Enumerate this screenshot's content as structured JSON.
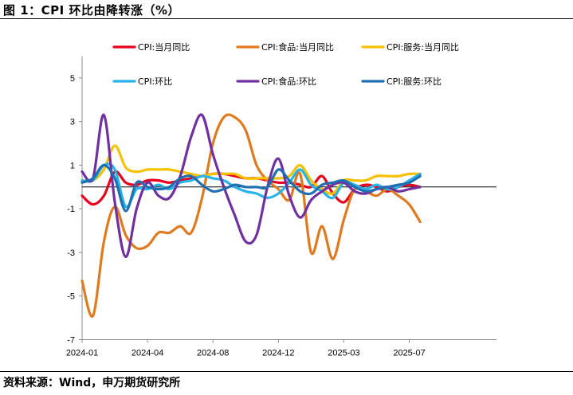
{
  "header": {
    "title": "图 1：CPI 环比由降转涨（%）"
  },
  "footer": {
    "source": "资料来源：Wind，申万期货研究所"
  },
  "chart_data": {
    "type": "line",
    "title": "CPI 环比由降转涨（%）",
    "xlabel": "",
    "ylabel": "",
    "ylim": [
      -7,
      6
    ],
    "yticks": [
      5,
      3,
      1,
      -1,
      -3,
      -5,
      -7
    ],
    "xlim": [
      0,
      19
    ],
    "x_ticks": [
      {
        "label": "2024-01",
        "x": 0
      },
      {
        "label": "2024-04",
        "x": 3
      },
      {
        "label": "2024-08",
        "x": 6
      },
      {
        "label": "2024-12",
        "x": 9
      },
      {
        "label": "2025-03",
        "x": 12
      },
      {
        "label": "2025-07",
        "x": 15
      }
    ],
    "zero_line": true,
    "grid": false,
    "legend_position": "top",
    "series": [
      {
        "name": "CPI:当月同比",
        "color": "#e8001c",
        "x": [
          0,
          0.5,
          1,
          1.5,
          2,
          2.5,
          3,
          3.5,
          4,
          4.5,
          5,
          5.5,
          6,
          6.5,
          7,
          7.5,
          8,
          8.5,
          9,
          9.5,
          10,
          10.5,
          11,
          11.5,
          12,
          12.5,
          13,
          13.5,
          14,
          14.5,
          15,
          15.5
        ],
        "values": [
          -0.4,
          -0.8,
          -0.4,
          0.7,
          0.2,
          0.1,
          0.3,
          0.3,
          0.2,
          0.3,
          0.4,
          0.5,
          0.6,
          0.6,
          0.5,
          0.4,
          0.4,
          0.3,
          0.2,
          0.2,
          0.1,
          0.0,
          0.5,
          -0.3,
          -0.7,
          -0.1,
          0.1,
          0.0,
          -0.2,
          0.0,
          0.1,
          0.0
        ]
      },
      {
        "name": "CPI:食品:当月同比",
        "color": "#e07a1e",
        "x": [
          0,
          0.5,
          1,
          1.5,
          2,
          2.5,
          3,
          3.5,
          4,
          4.5,
          5,
          5.5,
          6,
          6.5,
          7,
          7.5,
          8,
          8.5,
          9,
          9.5,
          10,
          10.5,
          11,
          11.5,
          12,
          12.5,
          13,
          13.5,
          14,
          14.5,
          15,
          15.5
        ],
        "values": [
          -4.3,
          -5.9,
          -2.5,
          -0.9,
          -2.2,
          -2.8,
          -2.7,
          -2.1,
          -2.1,
          -1.8,
          -2.1,
          -0.5,
          2.0,
          3.2,
          3.2,
          2.6,
          1.0,
          0.3,
          -0.1,
          -0.6,
          0.6,
          -3.0,
          -1.8,
          -3.3,
          -1.5,
          -0.1,
          -0.2,
          -0.4,
          -0.1,
          -0.4,
          -0.8,
          -1.6
        ]
      },
      {
        "name": "CPI:服务:当月同比",
        "color": "#f5c100",
        "x": [
          0,
          0.5,
          1,
          1.5,
          2,
          2.5,
          3,
          3.5,
          4,
          4.5,
          5,
          5.5,
          6,
          6.5,
          7,
          7.5,
          8,
          8.5,
          9,
          9.5,
          10,
          10.5,
          11,
          11.5,
          12,
          12.5,
          13,
          13.5,
          14,
          14.5,
          15,
          15.5
        ],
        "values": [
          0.3,
          0.3,
          0.8,
          1.9,
          0.9,
          0.7,
          0.8,
          0.8,
          0.8,
          0.7,
          0.6,
          0.5,
          0.6,
          0.6,
          0.6,
          0.4,
          0.4,
          0.4,
          0.4,
          0.5,
          1.0,
          0.3,
          -0.1,
          -0.3,
          0.3,
          0.3,
          0.3,
          0.5,
          0.5,
          0.5,
          0.6,
          0.6
        ]
      },
      {
        "name": "CPI:环比",
        "color": "#27b4e8",
        "x": [
          0,
          0.5,
          1,
          1.5,
          2,
          2.5,
          3,
          3.5,
          4,
          4.5,
          5,
          5.5,
          6,
          6.5,
          7,
          7.5,
          8,
          8.5,
          9,
          9.5,
          10,
          10.5,
          11,
          11.5,
          12,
          12.5,
          13,
          13.5,
          14,
          14.5,
          15,
          15.5
        ],
        "values": [
          0.3,
          0.3,
          1.0,
          0.8,
          -0.9,
          -0.1,
          -0.1,
          0.1,
          -0.1,
          0.2,
          0.3,
          0.5,
          0.4,
          0.3,
          0.0,
          -0.2,
          -0.3,
          -0.5,
          -0.3,
          0.2,
          0.8,
          0.1,
          -0.2,
          -0.5,
          0.2,
          0.1,
          -0.1,
          0.1,
          -0.1,
          0.0,
          0.3,
          0.6
        ]
      },
      {
        "name": "CPI:食品:环比",
        "color": "#7030a0",
        "x": [
          0,
          0.5,
          1,
          1.5,
          2,
          2.5,
          3,
          3.5,
          4,
          4.5,
          5,
          5.5,
          6,
          6.5,
          7,
          7.5,
          8,
          8.5,
          9,
          9.5,
          10,
          10.5,
          11,
          11.5,
          12,
          12.5,
          13,
          13.5,
          14,
          14.5,
          15,
          15.5
        ],
        "values": [
          0.7,
          0.4,
          3.3,
          -0.7,
          -3.2,
          -1.0,
          0.2,
          -0.4,
          -0.5,
          0.5,
          2.3,
          3.3,
          1.5,
          0.0,
          -1.3,
          -2.5,
          -2.2,
          0.0,
          1.3,
          -0.4,
          -1.4,
          -0.6,
          -0.2,
          0.1,
          0.2,
          -0.2,
          -0.3,
          -0.1,
          0.0,
          -0.2,
          -0.1,
          0.0
        ]
      },
      {
        "name": "CPI:服务:环比",
        "color": "#1f6fb2",
        "x": [
          0,
          0.5,
          1,
          1.5,
          2,
          2.5,
          3,
          3.5,
          4,
          4.5,
          5,
          5.5,
          6,
          6.5,
          7,
          7.5,
          8,
          8.5,
          9,
          9.5,
          10,
          10.5,
          11,
          11.5,
          12,
          12.5,
          13,
          13.5,
          14,
          14.5,
          15,
          15.5
        ],
        "values": [
          0.2,
          0.4,
          1.0,
          0.4,
          -1.1,
          0.2,
          0.0,
          -0.1,
          0.0,
          0.4,
          0.5,
          0.1,
          -0.2,
          -0.1,
          0.1,
          0.0,
          0.0,
          0.0,
          0.8,
          0.3,
          -0.2,
          -0.3,
          0.1,
          0.2,
          0.3,
          0.0,
          -0.2,
          -0.1,
          0.0,
          0.1,
          0.2,
          0.5
        ]
      }
    ]
  }
}
